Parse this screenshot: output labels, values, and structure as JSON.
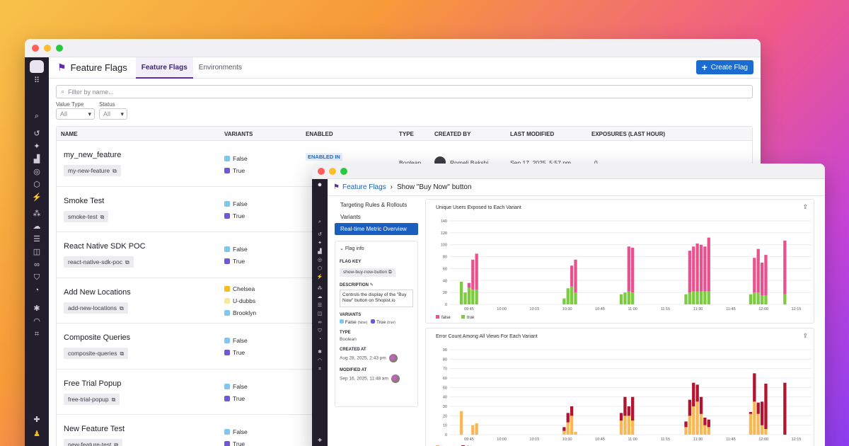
{
  "main_window": {
    "title": "Feature Flags",
    "tabs": [
      {
        "label": "Feature Flags",
        "active": true
      },
      {
        "label": "Environments",
        "active": false
      }
    ],
    "create_button": "Create Flag",
    "search_placeholder": "Filter by name...",
    "filters": [
      {
        "label": "Value Type",
        "value": "All"
      },
      {
        "label": "Status",
        "value": "All"
      }
    ],
    "columns": [
      "NAME",
      "VARIANTS",
      "ENABLED",
      "TYPE",
      "CREATED BY",
      "LAST MODIFIED",
      "EXPOSURES (LAST HOUR)"
    ],
    "rows": [
      {
        "name": "my_new_feature",
        "key": "my-new-feature",
        "variants": [
          {
            "label": "False",
            "color": "#7fc7f0"
          },
          {
            "label": "True",
            "color": "#6f57d6"
          }
        ],
        "enabled": "ENABLED IN",
        "type": "Boolean",
        "created_by": "Romeli Bakshi",
        "last_modified": "Sep 17, 2025, 5:57 pm",
        "exposures": "0"
      },
      {
        "name": "Smoke Test",
        "key": "smoke-test",
        "variants": [
          {
            "label": "False",
            "color": "#7fc7f0"
          },
          {
            "label": "True",
            "color": "#6f57d6"
          }
        ]
      },
      {
        "name": "React Native SDK POC",
        "key": "react-native-sdk-poc",
        "variants": [
          {
            "label": "False",
            "color": "#7fc7f0"
          },
          {
            "label": "True",
            "color": "#6f57d6"
          }
        ]
      },
      {
        "name": "Add New Locations",
        "key": "add-new-locations",
        "variants": [
          {
            "label": "Chelsea",
            "color": "#f4c01c"
          },
          {
            "label": "U-dubbs",
            "color": "#f6e99a"
          },
          {
            "label": "Brooklyn",
            "color": "#7fc7f0"
          }
        ]
      },
      {
        "name": "Composite Queries",
        "key": "composite-queries",
        "variants": [
          {
            "label": "False",
            "color": "#7fc7f0"
          },
          {
            "label": "True",
            "color": "#6f57d6"
          }
        ]
      },
      {
        "name": "Free Trial Popup",
        "key": "free-trial-popup",
        "variants": [
          {
            "label": "False",
            "color": "#7fc7f0"
          },
          {
            "label": "True",
            "color": "#6f57d6"
          }
        ]
      },
      {
        "name": "New Feature Test",
        "key": "new-feature-test",
        "variants": [
          {
            "label": "False",
            "color": "#7fc7f0"
          },
          {
            "label": "True",
            "color": "#6f57d6"
          }
        ]
      }
    ]
  },
  "detail_window": {
    "breadcrumb_link": "Feature Flags",
    "breadcrumb_sep": "›",
    "breadcrumb_current": "Show \"Buy Now\" button",
    "nav_items": [
      {
        "label": "Targeting Rules & Rollouts",
        "active": false
      },
      {
        "label": "Variants",
        "active": false
      },
      {
        "label": "Real-time Metric Overview",
        "active": true
      }
    ],
    "flag_info": {
      "header": "Flag info",
      "flag_key_label": "FLAG KEY",
      "flag_key": "show-buy-now-button",
      "description_label": "DESCRIPTION",
      "description": "Controls the display of the \"Buy Now\" button on Shopist.io",
      "variants_label": "VARIANTS",
      "variant_false": "False",
      "variant_false_value": "(false)",
      "variant_true": "True",
      "variant_true_value": "(true)",
      "type_label": "TYPE",
      "type": "Boolean",
      "created_label": "CREATED AT",
      "created": "Aug 28, 2025, 2:43 pm",
      "modified_label": "MODIFIED AT",
      "modified": "Sep 16, 2025, 11:48 am"
    },
    "colors": {
      "false_pink": "#e8538f",
      "true_green": "#7ccc3f",
      "true_orange": "#f7b955",
      "false_red": "#b3132e"
    }
  },
  "chart_data": [
    {
      "type": "bar",
      "title": "Unique Users Exposed to Each Variant",
      "stacked": true,
      "x_ticks": [
        "09:45",
        "10:00",
        "10:15",
        "10:30",
        "10:45",
        "11:00",
        "11:15",
        "11:30",
        "11:45",
        "12:00",
        "12:15"
      ],
      "ylim": [
        0,
        140
      ],
      "y_ticks": [
        0,
        20,
        40,
        60,
        80,
        100,
        120,
        140
      ],
      "x_range_minutes": [
        0,
        165
      ],
      "legend": [
        "false",
        "true"
      ],
      "grid": true,
      "series": [
        {
          "name": "false",
          "color": "#e8538f",
          "x": [
            3,
            4,
            5,
            6,
            7,
            30,
            31,
            32,
            33,
            45,
            46,
            47,
            48,
            62,
            63,
            64,
            65,
            66,
            67,
            68,
            79,
            80,
            81,
            82,
            83,
            88
          ],
          "values": [
            0,
            0,
            8,
            50,
            60,
            0,
            0,
            35,
            55,
            0,
            0,
            75,
            75,
            0,
            70,
            75,
            80,
            78,
            75,
            90,
            0,
            58,
            73,
            55,
            68,
            90
          ]
        },
        {
          "name": "true",
          "color": "#7ccc3f",
          "x": [
            3,
            4,
            5,
            6,
            7,
            30,
            31,
            32,
            33,
            45,
            46,
            47,
            48,
            62,
            63,
            64,
            65,
            66,
            67,
            68,
            79,
            80,
            81,
            82,
            83,
            88
          ],
          "values": [
            38,
            20,
            28,
            25,
            25,
            10,
            27,
            30,
            20,
            17,
            20,
            22,
            20,
            17,
            20,
            22,
            22,
            22,
            22,
            22,
            17,
            20,
            20,
            15,
            15,
            17
          ]
        }
      ]
    },
    {
      "type": "bar",
      "title": "Error Count Among All Views For Each Variant",
      "stacked": true,
      "x_ticks": [
        "09:45",
        "10:00",
        "10:15",
        "10:30",
        "10:45",
        "11:00",
        "11:15",
        "11:30",
        "11:45",
        "12:00",
        "12:15"
      ],
      "ylim": [
        0,
        90
      ],
      "y_ticks": [
        0,
        10,
        20,
        30,
        40,
        50,
        60,
        70,
        80,
        90
      ],
      "legend": [
        "true",
        "false"
      ],
      "grid": true,
      "series": [
        {
          "name": "true",
          "color": "#f7b955",
          "x": [
            3,
            6,
            7,
            30,
            31,
            32,
            33,
            45,
            46,
            47,
            48,
            62,
            63,
            64,
            65,
            66,
            67,
            68,
            79,
            80,
            81,
            82,
            83,
            88
          ],
          "values": [
            25,
            10,
            12,
            4,
            13,
            20,
            3,
            15,
            20,
            20,
            15,
            8,
            20,
            30,
            35,
            22,
            10,
            8,
            22,
            35,
            22,
            10,
            6,
            0
          ]
        },
        {
          "name": "false",
          "color": "#b3132e",
          "x": [
            3,
            6,
            7,
            30,
            31,
            32,
            33,
            45,
            46,
            47,
            48,
            62,
            63,
            64,
            65,
            66,
            67,
            68,
            79,
            80,
            81,
            82,
            83,
            88
          ],
          "values": [
            0,
            0,
            0,
            4,
            10,
            10,
            0,
            8,
            20,
            10,
            25,
            6,
            17,
            25,
            18,
            18,
            8,
            8,
            2,
            30,
            12,
            25,
            48,
            55
          ]
        }
      ]
    }
  ]
}
